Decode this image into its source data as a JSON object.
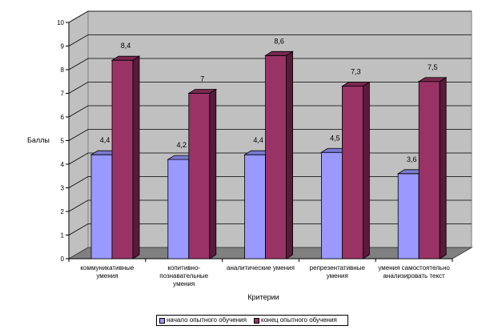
{
  "chart_data": {
    "type": "bar",
    "title": "",
    "xlabel": "Критерии",
    "ylabel": "Баллы",
    "ylim": [
      0,
      10
    ],
    "yticks": [
      0,
      1,
      2,
      3,
      4,
      5,
      6,
      7,
      8,
      9,
      10
    ],
    "grid": true,
    "legend_position": "bottom",
    "categories": [
      [
        "коммуникативные",
        "умения"
      ],
      [
        "копитивно-",
        "познавательные",
        "умения"
      ],
      [
        "аналитические умения"
      ],
      [
        "репрезентативные",
        "умения"
      ],
      [
        "умения самостоятельно",
        "анализировать текст"
      ]
    ],
    "series": [
      {
        "name": "начало опытного обучения",
        "values": [
          4.4,
          4.2,
          4.4,
          4.5,
          3.6
        ],
        "labels": [
          "4,4",
          "4,2",
          "4,4",
          "4,5",
          "3,6"
        ]
      },
      {
        "name": "конец опытного обучения",
        "values": [
          8.4,
          7,
          8.6,
          7.3,
          7.5
        ],
        "labels": [
          "8,4",
          "7",
          "8,6",
          "7,3",
          "7,5"
        ]
      }
    ],
    "colors": {
      "series1_front": "#9999ff",
      "series1_side": "#5959b3",
      "series1_top": "#7a7ad1",
      "series2_front": "#993366",
      "series2_side": "#5a1a3a",
      "series2_top": "#7a2850",
      "wall": "#c0c0c0",
      "floor": "#808080"
    }
  }
}
